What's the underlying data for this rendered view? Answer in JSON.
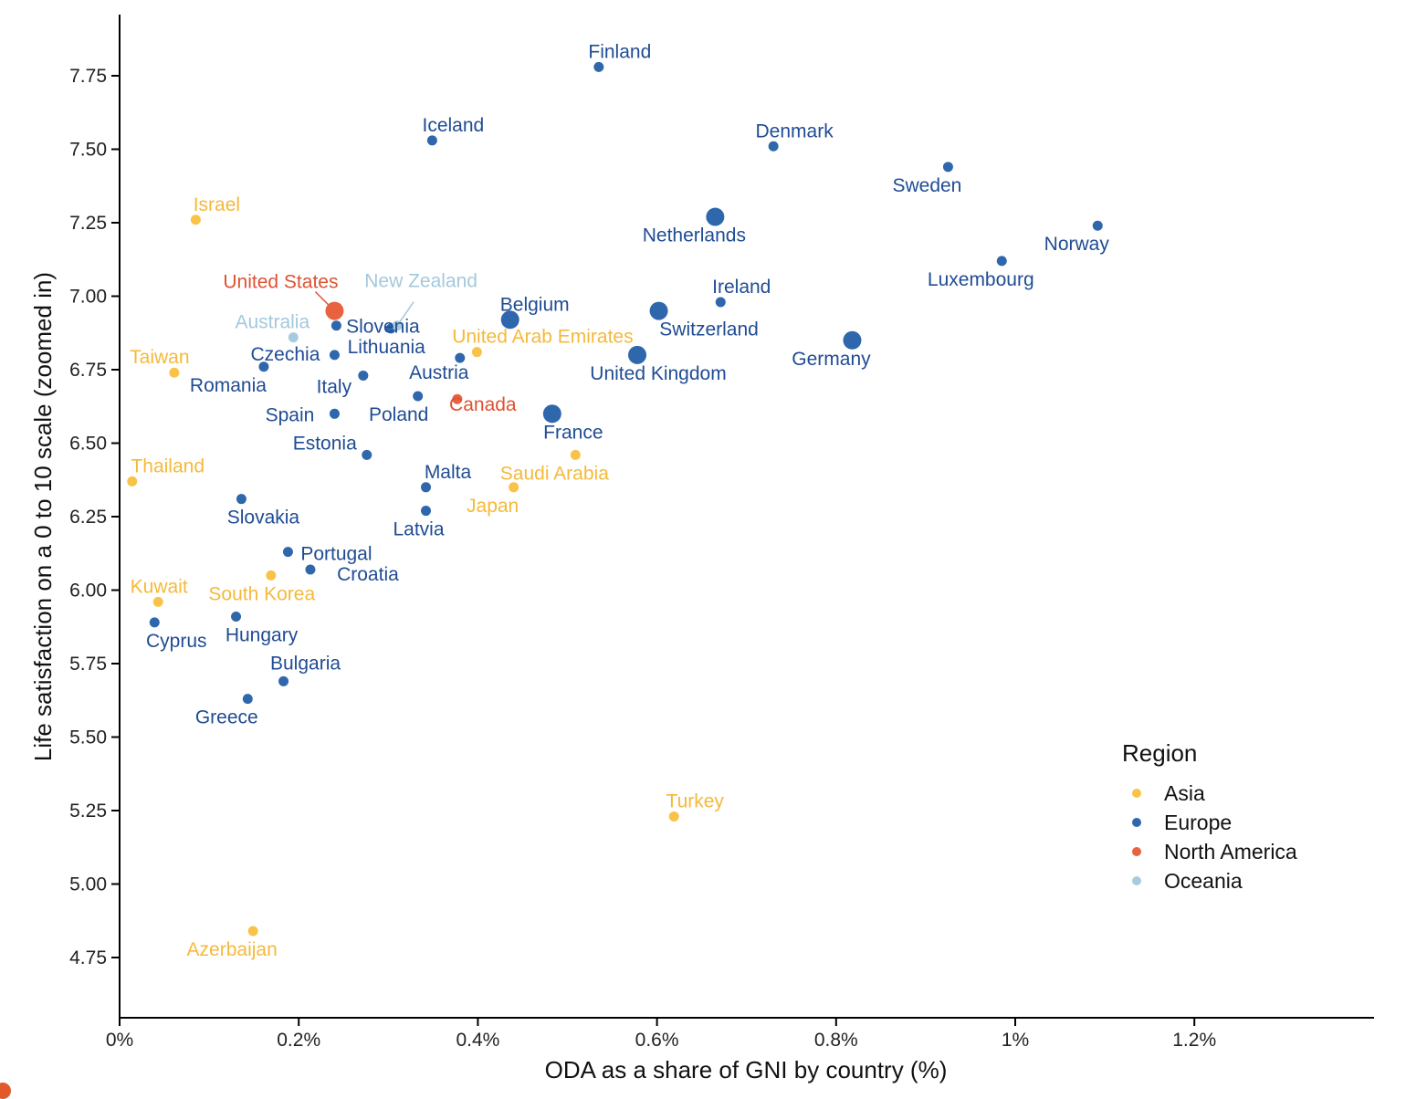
{
  "chart_data": {
    "type": "scatter",
    "title": "",
    "xlabel": "ODA as a share of GNI by country (%)",
    "ylabel": "Life satisfaction on a 0 to 10 scale (zoomed in)",
    "xlim": [
      0,
      1.4
    ],
    "ylim": [
      4.55,
      7.98
    ],
    "x_ticks": [
      0,
      0.2,
      0.4,
      0.6,
      0.8,
      1.0,
      1.2
    ],
    "x_tick_labels": [
      "0%",
      "0.2%",
      "0.4%",
      "0.6%",
      "0.8%",
      "1%",
      "1.2%"
    ],
    "y_ticks": [
      4.75,
      5.0,
      5.25,
      5.5,
      5.75,
      6.0,
      6.25,
      6.5,
      6.75,
      7.0,
      7.25,
      7.5,
      7.75
    ],
    "y_tick_labels": [
      "4.75",
      "5.00",
      "5.25",
      "5.50",
      "5.75",
      "6.00",
      "6.25",
      "6.50",
      "6.75",
      "7.00",
      "7.25",
      "7.50",
      "7.75"
    ],
    "grid": false,
    "legend": {
      "title": "Region",
      "position": "bottom-right",
      "entries": [
        {
          "name": "Asia",
          "color": "#F9C349"
        },
        {
          "name": "Europe",
          "color": "#2F67AC"
        },
        {
          "name": "North America",
          "color": "#E8623F"
        },
        {
          "name": "Oceania",
          "color": "#A8CCDD"
        }
      ]
    },
    "label_colors": {
      "Asia": "#F5B93A",
      "Europe": "#1F4C94",
      "North America": "#DD5233",
      "Oceania": "#A3C8DC"
    },
    "points": [
      {
        "label": "Finland",
        "region": "Europe",
        "x": 0.535,
        "y": 7.78,
        "size": "small"
      },
      {
        "label": "Iceland",
        "region": "Europe",
        "x": 0.349,
        "y": 7.53,
        "size": "small"
      },
      {
        "label": "Denmark",
        "region": "Europe",
        "x": 0.73,
        "y": 7.51,
        "size": "small"
      },
      {
        "label": "Sweden",
        "region": "Europe",
        "x": 0.925,
        "y": 7.44,
        "size": "small"
      },
      {
        "label": "Netherlands",
        "region": "Europe",
        "x": 0.665,
        "y": 7.27,
        "size": "large"
      },
      {
        "label": "Norway",
        "region": "Europe",
        "x": 1.092,
        "y": 7.24,
        "size": "small"
      },
      {
        "label": "Luxembourg",
        "region": "Europe",
        "x": 0.985,
        "y": 7.12,
        "size": "small"
      },
      {
        "label": "Ireland",
        "region": "Europe",
        "x": 0.671,
        "y": 6.98,
        "size": "small"
      },
      {
        "label": "Switzerland",
        "region": "Europe",
        "x": 0.602,
        "y": 6.95,
        "size": "large"
      },
      {
        "label": "Belgium",
        "region": "Europe",
        "x": 0.436,
        "y": 6.92,
        "size": "large"
      },
      {
        "label": "Germany",
        "region": "Europe",
        "x": 0.818,
        "y": 6.85,
        "size": "large"
      },
      {
        "label": "United Kingdom",
        "region": "Europe",
        "x": 0.578,
        "y": 6.8,
        "size": "large"
      },
      {
        "label": "France",
        "region": "Europe",
        "x": 0.483,
        "y": 6.6,
        "size": "large"
      },
      {
        "label": "Slovenia",
        "region": "Europe",
        "x": 0.242,
        "y": 6.9,
        "size": "small"
      },
      {
        "label": "Lithuania",
        "region": "Europe",
        "x": 0.303,
        "y": 6.89,
        "size": "small"
      },
      {
        "label": "Czechia",
        "region": "Europe",
        "x": 0.24,
        "y": 6.8,
        "size": "small"
      },
      {
        "label": "Romania",
        "region": "Europe",
        "x": 0.161,
        "y": 6.76,
        "size": "small"
      },
      {
        "label": "Italy",
        "region": "Europe",
        "x": 0.272,
        "y": 6.73,
        "size": "small"
      },
      {
        "label": "Austria",
        "region": "Europe",
        "x": 0.38,
        "y": 6.79,
        "size": "small"
      },
      {
        "label": "Poland",
        "region": "Europe",
        "x": 0.333,
        "y": 6.66,
        "size": "small"
      },
      {
        "label": "Spain",
        "region": "Europe",
        "x": 0.24,
        "y": 6.6,
        "size": "small"
      },
      {
        "label": "Estonia",
        "region": "Europe",
        "x": 0.276,
        "y": 6.46,
        "size": "small"
      },
      {
        "label": "Malta",
        "region": "Europe",
        "x": 0.342,
        "y": 6.35,
        "size": "small"
      },
      {
        "label": "Latvia",
        "region": "Europe",
        "x": 0.342,
        "y": 6.27,
        "size": "small"
      },
      {
        "label": "Slovakia",
        "region": "Europe",
        "x": 0.136,
        "y": 6.31,
        "size": "small"
      },
      {
        "label": "Portugal",
        "region": "Europe",
        "x": 0.188,
        "y": 6.13,
        "size": "small"
      },
      {
        "label": "Croatia",
        "region": "Europe",
        "x": 0.213,
        "y": 6.07,
        "size": "small"
      },
      {
        "label": "Hungary",
        "region": "Europe",
        "x": 0.13,
        "y": 5.91,
        "size": "small"
      },
      {
        "label": "Cyprus",
        "region": "Europe",
        "x": 0.039,
        "y": 5.89,
        "size": "small"
      },
      {
        "label": "Bulgaria",
        "region": "Europe",
        "x": 0.183,
        "y": 5.69,
        "size": "small"
      },
      {
        "label": "Greece",
        "region": "Europe",
        "x": 0.143,
        "y": 5.63,
        "size": "small"
      },
      {
        "label": "United States",
        "region": "North America",
        "x": 0.24,
        "y": 6.95,
        "size": "large"
      },
      {
        "label": "Canada",
        "region": "North America",
        "x": 0.377,
        "y": 6.65,
        "size": "small"
      },
      {
        "label": "New Zealand",
        "region": "Oceania",
        "x": 0.31,
        "y": 6.9,
        "size": "small"
      },
      {
        "label": "Australia",
        "region": "Oceania",
        "x": 0.194,
        "y": 6.86,
        "size": "small"
      },
      {
        "label": "Israel",
        "region": "Asia",
        "x": 0.085,
        "y": 7.26,
        "size": "small"
      },
      {
        "label": "Taiwan",
        "region": "Asia",
        "x": 0.061,
        "y": 6.74,
        "size": "small"
      },
      {
        "label": "United Arab Emirates",
        "region": "Asia",
        "x": 0.399,
        "y": 6.81,
        "size": "small"
      },
      {
        "label": "Thailand",
        "region": "Asia",
        "x": 0.014,
        "y": 6.37,
        "size": "small"
      },
      {
        "label": "Saudi Arabia",
        "region": "Asia",
        "x": 0.509,
        "y": 6.46,
        "size": "small"
      },
      {
        "label": "Japan",
        "region": "Asia",
        "x": 0.44,
        "y": 6.35,
        "size": "small"
      },
      {
        "label": "Kuwait",
        "region": "Asia",
        "x": 0.043,
        "y": 5.96,
        "size": "small"
      },
      {
        "label": "South Korea",
        "region": "Asia",
        "x": 0.169,
        "y": 6.05,
        "size": "small"
      },
      {
        "label": "Turkey",
        "region": "Asia",
        "x": 0.619,
        "y": 5.23,
        "size": "small"
      },
      {
        "label": "Azerbaijan",
        "region": "Asia",
        "x": 0.149,
        "y": 4.84,
        "size": "small"
      }
    ]
  }
}
